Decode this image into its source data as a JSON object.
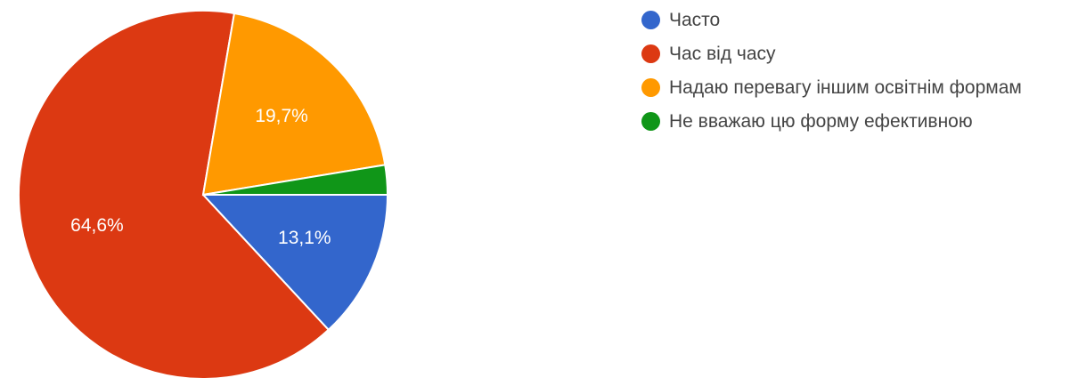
{
  "chart_data": {
    "type": "pie",
    "categories": [
      "Часто",
      "Час від часу",
      "Надаю перевагу іншим освітнім формам",
      "Не вважаю цю форму ефективною"
    ],
    "values": [
      13.1,
      64.6,
      19.7,
      2.6
    ],
    "value_labels": [
      "13,1%",
      "64,6%",
      "19,7%",
      ""
    ],
    "colors": [
      "#3366cc",
      "#dc3912",
      "#ff9900",
      "#109618"
    ],
    "legend_position": "right"
  }
}
